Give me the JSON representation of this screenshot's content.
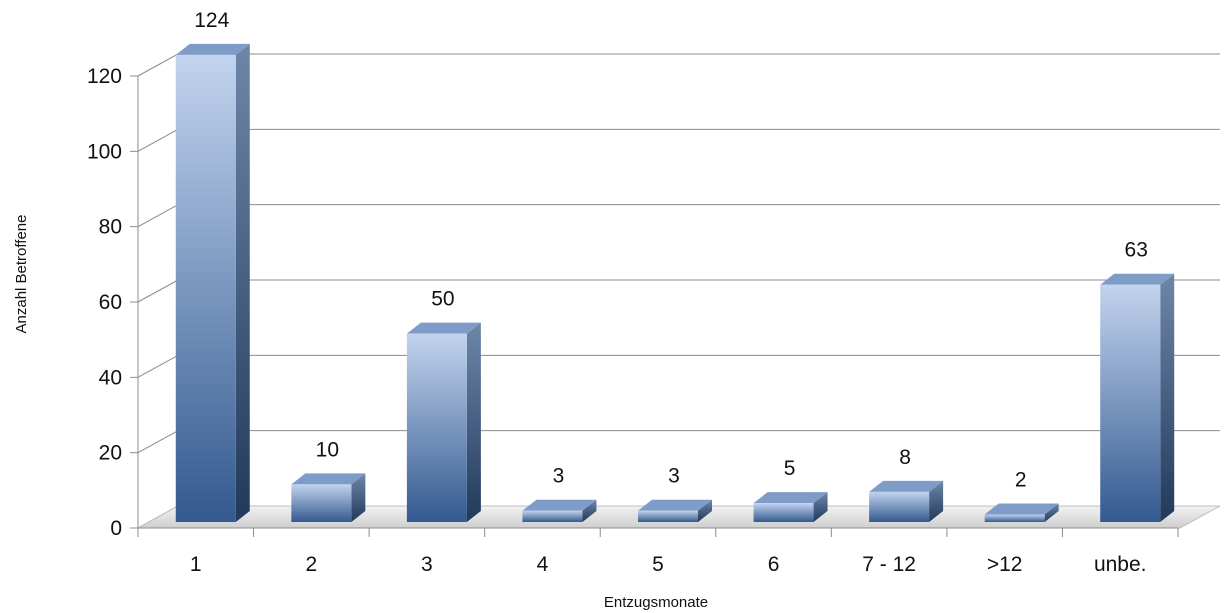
{
  "chart_data": {
    "type": "bar",
    "categories": [
      "1",
      "2",
      "3",
      "4",
      "5",
      "6",
      "7 - 12",
      ">12",
      "unbe."
    ],
    "values": [
      124,
      10,
      50,
      3,
      3,
      5,
      8,
      2,
      63
    ],
    "title": "",
    "xlabel": "Entzugsmonate",
    "ylabel": "Anzahl Betroffene",
    "ylim": [
      0,
      120
    ],
    "yticks": [
      0,
      20,
      40,
      60,
      80,
      100,
      120
    ],
    "grid": true,
    "legend": "none",
    "colors": {
      "bar_light": "#c2d4ee",
      "bar_dark": "#33598f",
      "bar_side": "#2b4a75",
      "bar_top": "#8aa6cf",
      "grid": "#8c8c8c",
      "floor": "#d9d9d9"
    }
  }
}
